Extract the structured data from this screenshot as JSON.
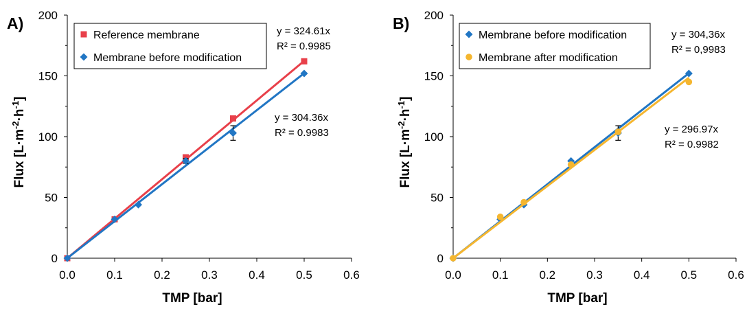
{
  "chart_data": [
    {
      "type": "scatter",
      "panel_label": "A)",
      "xlabel": "TMP [bar]",
      "ylabel": "Flux [L·m-2·h-1]",
      "xlim": [
        0,
        0.6
      ],
      "ylim": [
        0,
        200
      ],
      "xticks": [
        "0.0",
        "0.1",
        "0.2",
        "0.3",
        "0.4",
        "0.5",
        "0.6"
      ],
      "yticks": [
        "0",
        "50",
        "100",
        "150",
        "200"
      ],
      "grid": false,
      "legend_position": "top-left",
      "series": [
        {
          "name": "Reference membrane",
          "color": "#e8404a",
          "marker": "square",
          "x": [
            0,
            0.1,
            0.25,
            0.35,
            0.5
          ],
          "y": [
            0,
            32,
            83,
            115,
            162
          ],
          "error": [
            0,
            0,
            2,
            2,
            0
          ],
          "fit": {
            "slope": 324.61,
            "equation": "y = 324.61x",
            "r2": "R² = 0.9985"
          }
        },
        {
          "name": "Membrane before modification",
          "color": "#2176c4",
          "marker": "diamond",
          "x": [
            0,
            0.1,
            0.15,
            0.25,
            0.35,
            0.5
          ],
          "y": [
            0,
            32,
            44,
            80,
            103,
            152
          ],
          "error": [
            0,
            0,
            0,
            2,
            6,
            0
          ],
          "fit": {
            "slope": 304.36,
            "equation": "y = 304.36x",
            "r2": "R² = 0.9983"
          }
        }
      ]
    },
    {
      "type": "scatter",
      "panel_label": "B)",
      "xlabel": "TMP [bar]",
      "ylabel": "Flux [L·m-2·h-1]",
      "xlim": [
        0,
        0.6
      ],
      "ylim": [
        0,
        200
      ],
      "xticks": [
        "0.0",
        "0.1",
        "0.2",
        "0.3",
        "0.4",
        "0.5",
        "0.6"
      ],
      "yticks": [
        "0",
        "50",
        "100",
        "150",
        "200"
      ],
      "grid": false,
      "legend_position": "top-left",
      "series": [
        {
          "name": "Membrane before modification",
          "color": "#2176c4",
          "marker": "diamond",
          "x": [
            0,
            0.1,
            0.15,
            0.25,
            0.35,
            0.5
          ],
          "y": [
            0,
            32,
            44,
            80,
            103,
            152
          ],
          "error": [
            0,
            0,
            0,
            0,
            6,
            0
          ],
          "fit": {
            "slope": 304.36,
            "equation": "y = 304,36x",
            "r2": "R² = 0,9983"
          }
        },
        {
          "name": "Membrane after modification",
          "color": "#f5b62f",
          "marker": "circle",
          "x": [
            0,
            0.1,
            0.15,
            0.25,
            0.35,
            0.5
          ],
          "y": [
            0,
            34,
            46,
            77,
            104,
            145
          ],
          "error": [
            0,
            0,
            0,
            0,
            0,
            0
          ],
          "fit": {
            "slope": 296.97,
            "equation": "y = 296.97x",
            "r2": "R² = 0.9982"
          }
        }
      ]
    }
  ]
}
